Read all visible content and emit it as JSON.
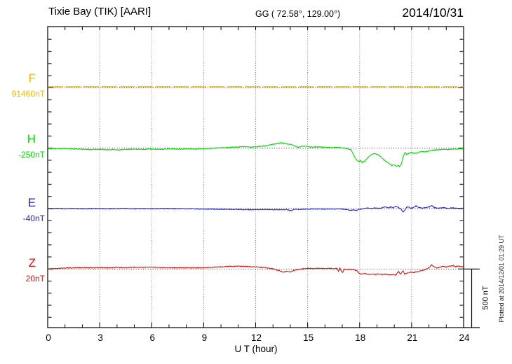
{
  "header": {
    "title": "Tixie Bay (TIK)  [AARI]",
    "coords": "GG ( 72.58°, 129.00°)",
    "date": "2014/10/31"
  },
  "chart_data": {
    "type": "line",
    "title": "Tixie Bay (TIK)  [AARI]",
    "subtitle": "GG ( 72.58°, 129.00°)",
    "date": "2014/10/31",
    "xlabel": "U T (hour)",
    "x_range": [
      0,
      24
    ],
    "x_major_ticks": [
      0,
      3,
      6,
      9,
      12,
      15,
      18,
      21,
      24
    ],
    "x_minor_step_hours": 1,
    "y_tick_step_nT": 100,
    "trace_offset_nT": 500,
    "grid": "dotted-vertical-every-3h-and-dotted-baselines",
    "scale_bar": {
      "label": "500 nT",
      "span_nT": 500
    },
    "plotted_at": "Plotted at 2014/12/01 01:29 UT",
    "series": [
      {
        "name": "F",
        "baseline_label": "91460nT",
        "baseline_nT": 91460,
        "color": "#FFB400",
        "noise_nT": 1,
        "points": [
          [
            0,
            8
          ],
          [
            24,
            8
          ]
        ]
      },
      {
        "name": "H",
        "baseline_label": "-250nT",
        "baseline_nT": -250,
        "color": "#00D800",
        "noise_nT": 3,
        "points": [
          [
            0,
            -2
          ],
          [
            0.5,
            -3
          ],
          [
            1,
            -2
          ],
          [
            1.5,
            -5
          ],
          [
            2,
            -8
          ],
          [
            2.5,
            -11
          ],
          [
            3,
            -9
          ],
          [
            3.4,
            -13
          ],
          [
            3.8,
            -11
          ],
          [
            4.2,
            -14
          ],
          [
            4.6,
            -9
          ],
          [
            5,
            -8
          ],
          [
            5.5,
            -10
          ],
          [
            6,
            -7
          ],
          [
            6.5,
            -9
          ],
          [
            7,
            -6
          ],
          [
            7.5,
            -8
          ],
          [
            8,
            -6
          ],
          [
            8.5,
            -7
          ],
          [
            9,
            -4
          ],
          [
            9.5,
            -1
          ],
          [
            10,
            3
          ],
          [
            10.5,
            7
          ],
          [
            11,
            10
          ],
          [
            11.4,
            13
          ],
          [
            11.7,
            9
          ],
          [
            12,
            11
          ],
          [
            12.4,
            17
          ],
          [
            12.8,
            26
          ],
          [
            13.1,
            34
          ],
          [
            13.3,
            42
          ],
          [
            13.5,
            45
          ],
          [
            13.7,
            38
          ],
          [
            13.9,
            33
          ],
          [
            14.1,
            28
          ],
          [
            14.3,
            16
          ],
          [
            14.45,
            6
          ],
          [
            14.6,
            14
          ],
          [
            14.8,
            17
          ],
          [
            15,
            13
          ],
          [
            15.3,
            9
          ],
          [
            15.6,
            11
          ],
          [
            16,
            7
          ],
          [
            16.4,
            5
          ],
          [
            16.8,
            6
          ],
          [
            17.1,
            1
          ],
          [
            17.3,
            -4
          ],
          [
            17.5,
            -12
          ],
          [
            17.65,
            -55
          ],
          [
            17.8,
            -95
          ],
          [
            17.95,
            -112
          ],
          [
            18.05,
            -100
          ],
          [
            18.15,
            -118
          ],
          [
            18.3,
            -108
          ],
          [
            18.45,
            -82
          ],
          [
            18.6,
            -62
          ],
          [
            18.75,
            -48
          ],
          [
            18.9,
            -44
          ],
          [
            19.1,
            -58
          ],
          [
            19.3,
            -82
          ],
          [
            19.5,
            -108
          ],
          [
            19.7,
            -128
          ],
          [
            19.85,
            -142
          ],
          [
            20,
            -136
          ],
          [
            20.1,
            -150
          ],
          [
            20.2,
            -142
          ],
          [
            20.3,
            -152
          ],
          [
            20.42,
            -128
          ],
          [
            20.52,
            -65
          ],
          [
            20.62,
            -38
          ],
          [
            20.72,
            -52
          ],
          [
            20.85,
            -42
          ],
          [
            21,
            -36
          ],
          [
            21.2,
            -44
          ],
          [
            21.4,
            -33
          ],
          [
            21.6,
            -28
          ],
          [
            21.8,
            -30
          ],
          [
            22,
            -22
          ],
          [
            22.3,
            -16
          ],
          [
            22.6,
            -13
          ],
          [
            23,
            -10
          ],
          [
            23.4,
            -8
          ],
          [
            23.7,
            -6
          ],
          [
            24,
            -5
          ]
        ]
      },
      {
        "name": "E",
        "baseline_label": "-40nT",
        "baseline_nT": -40,
        "color": "#2222CC",
        "noise_nT": 3,
        "points": [
          [
            0,
            1
          ],
          [
            0.5,
            2
          ],
          [
            1,
            0
          ],
          [
            1.5,
            1
          ],
          [
            2,
            -1
          ],
          [
            2.5,
            0
          ],
          [
            3,
            1
          ],
          [
            3.5,
            -1
          ],
          [
            4,
            0
          ],
          [
            4.5,
            1
          ],
          [
            5,
            -1
          ],
          [
            5.5,
            0
          ],
          [
            6,
            -1
          ],
          [
            6.5,
            1
          ],
          [
            7,
            0
          ],
          [
            7.5,
            -1
          ],
          [
            8,
            0
          ],
          [
            8.5,
            -2
          ],
          [
            9,
            -3
          ],
          [
            9.5,
            -4
          ],
          [
            10,
            -5
          ],
          [
            10.5,
            -6
          ],
          [
            11,
            -7
          ],
          [
            11.5,
            -8
          ],
          [
            12,
            -9
          ],
          [
            12.5,
            -8
          ],
          [
            13,
            -9
          ],
          [
            13.5,
            -8
          ],
          [
            13.9,
            -10
          ],
          [
            14.05,
            -18
          ],
          [
            14.2,
            -8
          ],
          [
            14.5,
            -6
          ],
          [
            15,
            -4
          ],
          [
            15.5,
            -3
          ],
          [
            16,
            -4
          ],
          [
            16.5,
            -2
          ],
          [
            17,
            -4
          ],
          [
            17.3,
            -9
          ],
          [
            17.45,
            -16
          ],
          [
            17.6,
            -11
          ],
          [
            17.75,
            -15
          ],
          [
            17.9,
            -9
          ],
          [
            18.1,
            -3
          ],
          [
            18.3,
            2
          ],
          [
            18.5,
            4
          ],
          [
            18.7,
            1
          ],
          [
            18.9,
            5
          ],
          [
            19.1,
            2
          ],
          [
            19.3,
            7
          ],
          [
            19.5,
            15
          ],
          [
            19.65,
            5
          ],
          [
            19.8,
            14
          ],
          [
            19.95,
            7
          ],
          [
            20.1,
            22
          ],
          [
            20.25,
            10
          ],
          [
            20.4,
            -8
          ],
          [
            20.5,
            -30
          ],
          [
            20.6,
            -12
          ],
          [
            20.7,
            8
          ],
          [
            20.8,
            16
          ],
          [
            20.95,
            4
          ],
          [
            21.1,
            10
          ],
          [
            21.25,
            22
          ],
          [
            21.4,
            10
          ],
          [
            21.6,
            3
          ],
          [
            21.8,
            8
          ],
          [
            22,
            13
          ],
          [
            22.15,
            25
          ],
          [
            22.3,
            10
          ],
          [
            22.5,
            3
          ],
          [
            22.8,
            8
          ],
          [
            23.1,
            2
          ],
          [
            23.4,
            6
          ],
          [
            23.7,
            2
          ],
          [
            24,
            3
          ]
        ]
      },
      {
        "name": "Z",
        "baseline_label": "20nT",
        "baseline_nT": 20,
        "color": "#DD1111",
        "noise_nT": 3,
        "points": [
          [
            0,
            2
          ],
          [
            0.5,
            5
          ],
          [
            1,
            8
          ],
          [
            1.5,
            10
          ],
          [
            2,
            12
          ],
          [
            2.5,
            11
          ],
          [
            3,
            13
          ],
          [
            3.5,
            10
          ],
          [
            4,
            14
          ],
          [
            4.5,
            12
          ],
          [
            5,
            15
          ],
          [
            5.5,
            13
          ],
          [
            6,
            16
          ],
          [
            6.5,
            13
          ],
          [
            7,
            11
          ],
          [
            7.5,
            10
          ],
          [
            8,
            11
          ],
          [
            8.5,
            9
          ],
          [
            9,
            10
          ],
          [
            9.5,
            14
          ],
          [
            10,
            18
          ],
          [
            10.5,
            22
          ],
          [
            11,
            24
          ],
          [
            11.5,
            21
          ],
          [
            12,
            17
          ],
          [
            12.5,
            13
          ],
          [
            12.8,
            7
          ],
          [
            13,
            1
          ],
          [
            13.2,
            -7
          ],
          [
            13.4,
            -17
          ],
          [
            13.6,
            -23
          ],
          [
            13.8,
            -18
          ],
          [
            14,
            -24
          ],
          [
            14.2,
            -12
          ],
          [
            14.5,
            -3
          ],
          [
            14.8,
            3
          ],
          [
            15,
            6
          ],
          [
            15.3,
            4
          ],
          [
            15.6,
            6
          ],
          [
            16,
            4
          ],
          [
            16.3,
            6
          ],
          [
            16.55,
            2
          ],
          [
            16.7,
            6
          ],
          [
            16.78,
            -20
          ],
          [
            16.86,
            8
          ],
          [
            16.94,
            -16
          ],
          [
            17.02,
            -28
          ],
          [
            17.1,
            0
          ],
          [
            17.2,
            -6
          ],
          [
            17.35,
            -2
          ],
          [
            17.5,
            -4
          ],
          [
            17.7,
            -8
          ],
          [
            17.85,
            -14
          ],
          [
            17.95,
            -32
          ],
          [
            18.1,
            -42
          ],
          [
            18.3,
            -38
          ],
          [
            18.5,
            -43
          ],
          [
            18.7,
            -40
          ],
          [
            18.9,
            -45
          ],
          [
            19.1,
            -41
          ],
          [
            19.3,
            -46
          ],
          [
            19.5,
            -42
          ],
          [
            19.7,
            -47
          ],
          [
            19.9,
            -44
          ],
          [
            20.1,
            -49
          ],
          [
            20.25,
            -18
          ],
          [
            20.35,
            -46
          ],
          [
            20.5,
            -14
          ],
          [
            20.6,
            -43
          ],
          [
            20.75,
            -32
          ],
          [
            20.9,
            -26
          ],
          [
            21.1,
            -29
          ],
          [
            21.3,
            -21
          ],
          [
            21.5,
            -16
          ],
          [
            21.7,
            -8
          ],
          [
            21.9,
            3
          ],
          [
            22.05,
            20
          ],
          [
            22.15,
            36
          ],
          [
            22.3,
            18
          ],
          [
            22.45,
            8
          ],
          [
            22.6,
            15
          ],
          [
            22.8,
            22
          ],
          [
            23,
            17
          ],
          [
            23.2,
            23
          ],
          [
            23.4,
            28
          ],
          [
            23.55,
            19
          ],
          [
            23.7,
            25
          ],
          [
            23.85,
            20
          ],
          [
            24,
            18
          ]
        ]
      }
    ]
  }
}
